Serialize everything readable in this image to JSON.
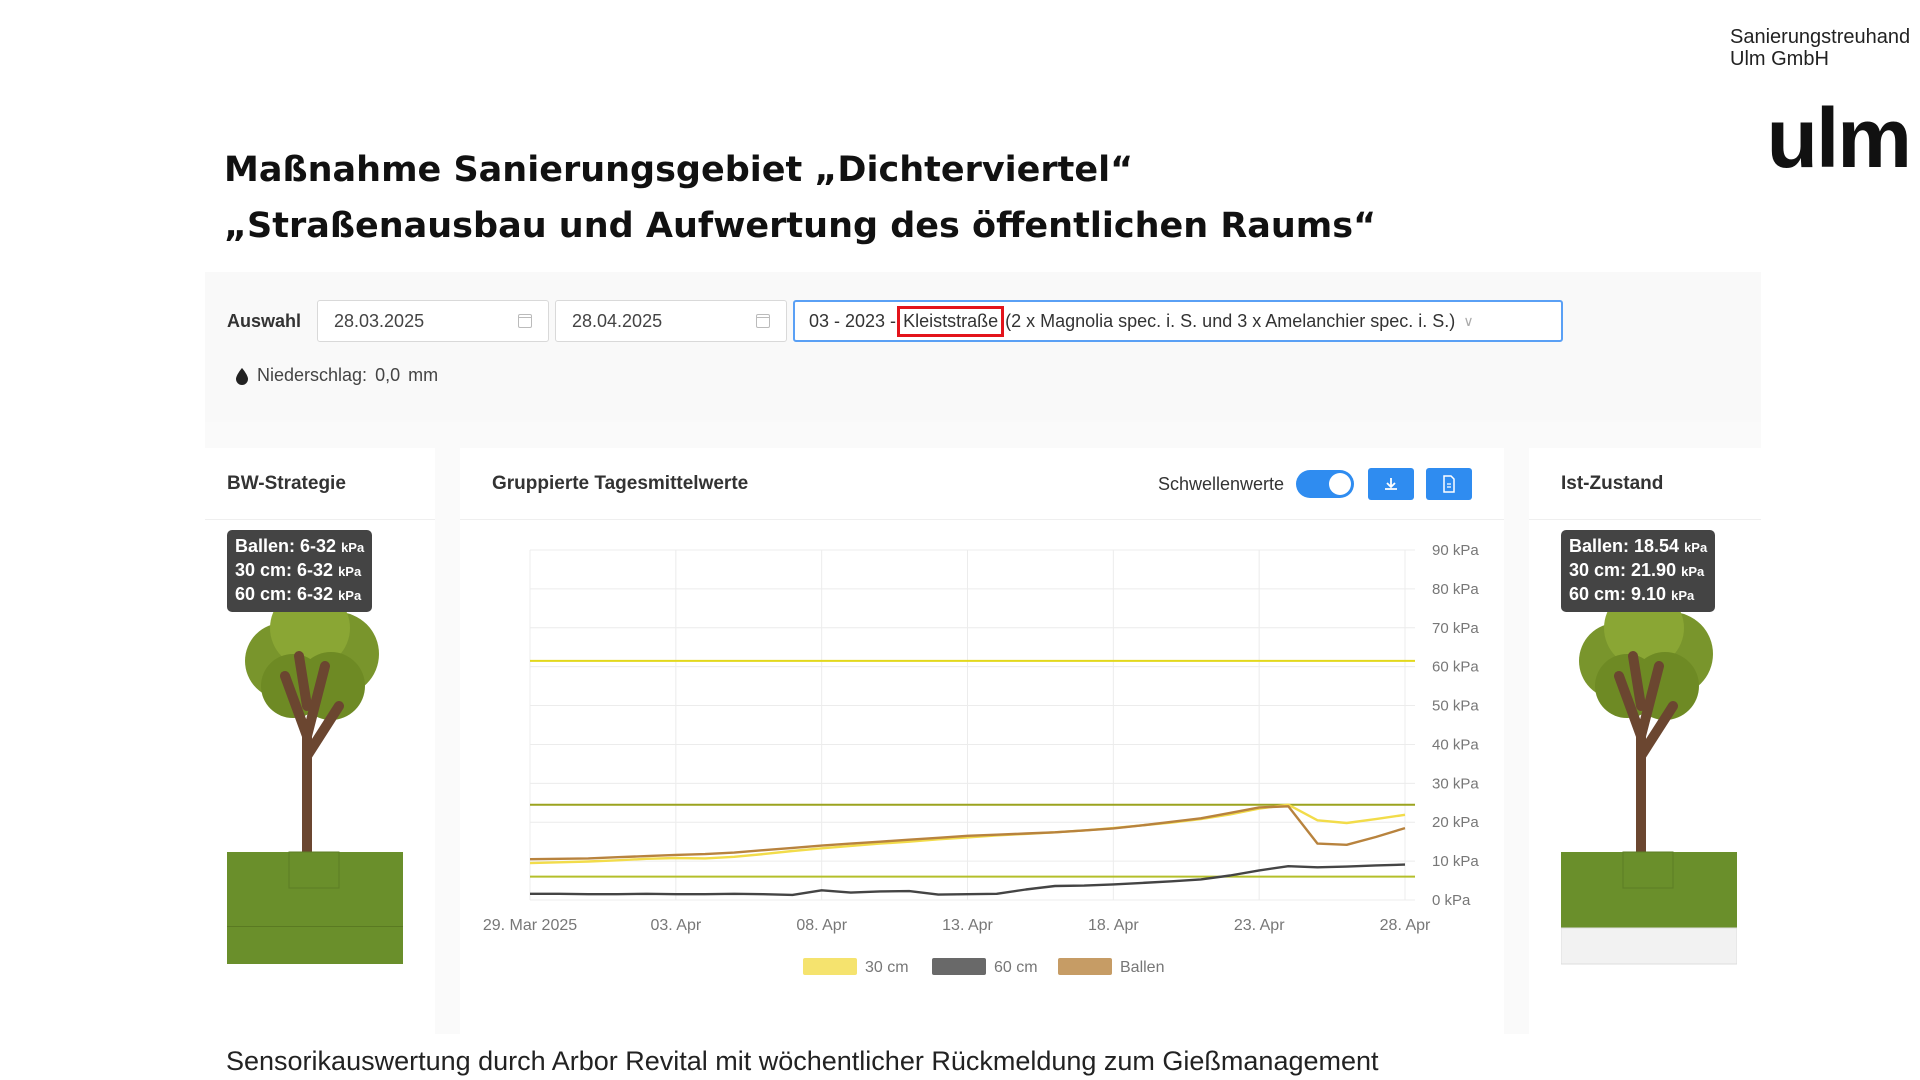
{
  "brand": {
    "line1": "Sanierungstreuhand",
    "line2": "Ulm GmbH",
    "logo": "ulm"
  },
  "heading": {
    "line1": "Maßnahme Sanierungsgebiet „Dichterviertel“",
    "line2": "„Straßenausbau und Aufwertung des öffentlichen Raums“"
  },
  "filters": {
    "label": "Auswahl",
    "date_from": "28.03.2025",
    "date_to": "28.04.2025",
    "site_prefix": "03 - 2023 -",
    "site_highlight": "Kleiststraße",
    "site_suffix": "(2 x Magnolia spec. i. S. und 3 x Amelanchier spec. i. S.)",
    "calendar_icon": "calendar-icon",
    "dropdown_icon": "chevron-down-icon"
  },
  "rain": {
    "label": "Niederschlag:",
    "value": "0,0",
    "unit": "mm",
    "icon": "droplet-icon"
  },
  "left_panel": {
    "title": "BW-Strategie",
    "tooltip": [
      {
        "label": "Ballen: 6-32",
        "unit": "kPa"
      },
      {
        "label": "30 cm: 6-32",
        "unit": "kPa"
      },
      {
        "label": "60 cm: 6-32",
        "unit": "kPa"
      }
    ]
  },
  "center_panel": {
    "title": "Gruppierte Tagesmittelwerte",
    "threshold_label": "Schwellenwerte",
    "threshold_on": true,
    "download_icon": "download-icon",
    "pdf_icon": "pdf-file-icon"
  },
  "right_panel": {
    "title": "Ist-Zustand",
    "tooltip": [
      {
        "label": "Ballen: 18.54",
        "unit": "kPa"
      },
      {
        "label": "30 cm: 21.90",
        "unit": "kPa"
      },
      {
        "label": "60 cm: 9.10",
        "unit": "kPa"
      }
    ]
  },
  "chart_data": {
    "type": "line",
    "x_tick_labels": [
      "29. Mar 2025",
      "03. Apr",
      "08. Apr",
      "13. Apr",
      "18. Apr",
      "23. Apr",
      "28. Apr"
    ],
    "x": [
      "2025-03-29",
      "2025-03-30",
      "2025-03-31",
      "2025-04-01",
      "2025-04-02",
      "2025-04-03",
      "2025-04-04",
      "2025-04-05",
      "2025-04-06",
      "2025-04-07",
      "2025-04-08",
      "2025-04-09",
      "2025-04-10",
      "2025-04-11",
      "2025-04-12",
      "2025-04-13",
      "2025-04-14",
      "2025-04-15",
      "2025-04-16",
      "2025-04-17",
      "2025-04-18",
      "2025-04-19",
      "2025-04-20",
      "2025-04-21",
      "2025-04-22",
      "2025-04-23",
      "2025-04-24",
      "2025-04-25",
      "2025-04-26",
      "2025-04-27",
      "2025-04-28"
    ],
    "y_ticks": [
      "0 kPa",
      "10 kPa",
      "20 kPa",
      "30 kPa",
      "40 kPa",
      "50 kPa",
      "60 kPa",
      "70 kPa",
      "80 kPa",
      "90 kPa"
    ],
    "ylim": [
      0,
      90
    ],
    "series": [
      {
        "name": "30 cm",
        "color": "#f2dc4a",
        "values": [
          9.5,
          9.7,
          9.9,
          10.2,
          10.6,
          10.8,
          10.7,
          11.1,
          11.8,
          12.6,
          13.3,
          13.9,
          14.5,
          15.0,
          15.6,
          16.1,
          16.6,
          17.0,
          17.4,
          17.9,
          18.5,
          19.2,
          19.9,
          20.8,
          22.0,
          23.5,
          24.5,
          20.5,
          19.8,
          20.8,
          21.9
        ]
      },
      {
        "name": "60 cm",
        "color": "#444444",
        "values": [
          1.6,
          1.6,
          1.5,
          1.5,
          1.6,
          1.5,
          1.5,
          1.6,
          1.5,
          1.3,
          2.5,
          1.9,
          2.2,
          2.3,
          1.4,
          1.5,
          1.6,
          2.7,
          3.6,
          3.7,
          4.0,
          4.4,
          4.8,
          5.3,
          6.3,
          7.6,
          8.7,
          8.4,
          8.6,
          8.9,
          9.1
        ]
      },
      {
        "name": "Ballen",
        "color": "#b8833e",
        "values": [
          10.5,
          10.6,
          10.7,
          11.0,
          11.3,
          11.6,
          11.8,
          12.2,
          12.8,
          13.4,
          14.0,
          14.5,
          15.0,
          15.5,
          16.0,
          16.5,
          16.8,
          17.1,
          17.4,
          17.9,
          18.4,
          19.2,
          20.1,
          21.0,
          22.4,
          23.8,
          24.1,
          14.5,
          14.2,
          16.2,
          18.5
        ]
      }
    ],
    "thresholds": [
      {
        "value": 6,
        "color": "#b4bf2a"
      },
      {
        "value": 24.5,
        "color": "#9ba31f"
      },
      {
        "value": 61.5,
        "color": "#e3d81c"
      }
    ],
    "legend": "bottom",
    "grid": true
  },
  "caption": "Sensorikauswertung durch Arbor Revital mit wöchentlicher Rückmeldung zum Gießmanagement"
}
